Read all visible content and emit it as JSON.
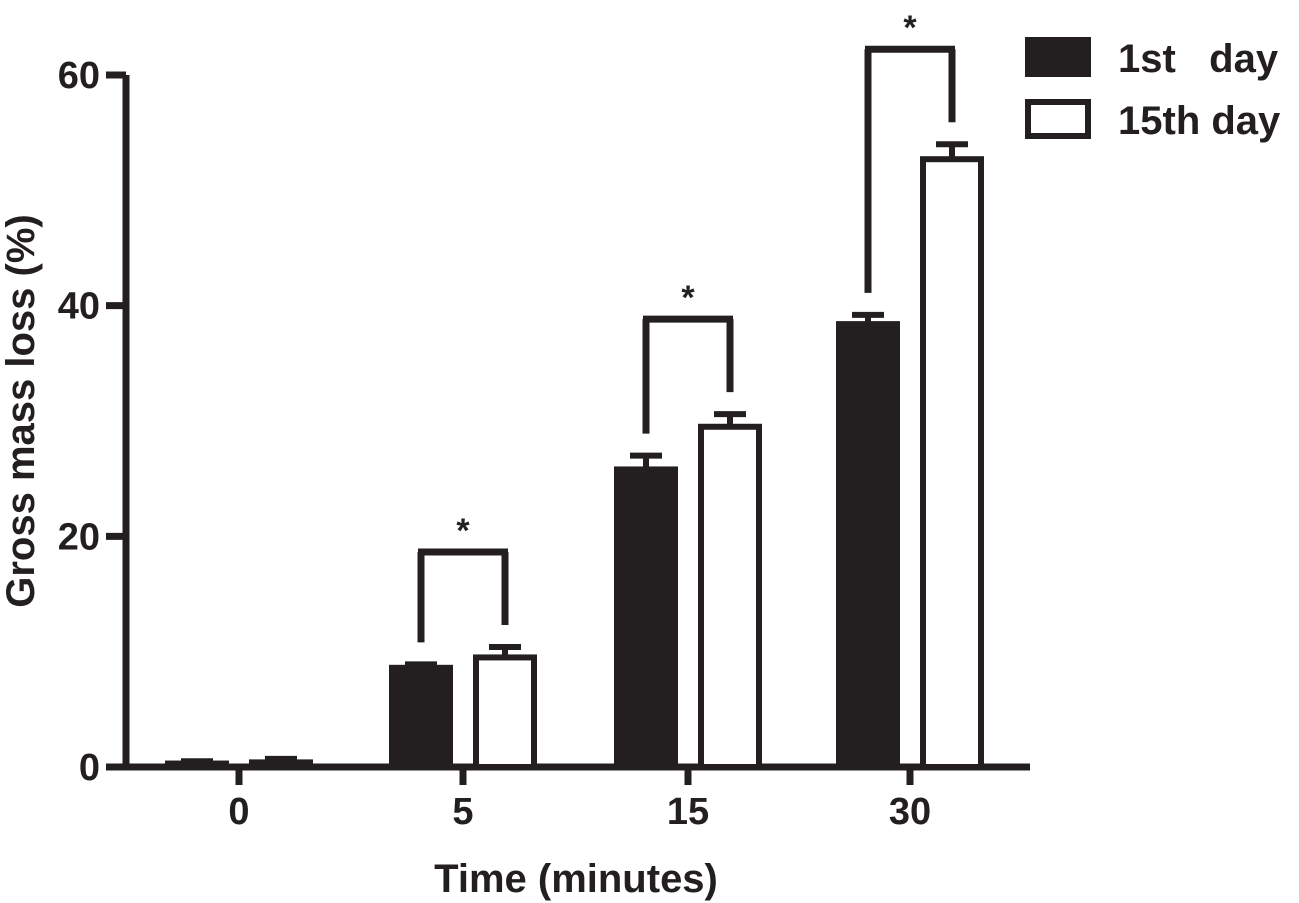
{
  "chart_data": {
    "type": "bar",
    "title": "",
    "xlabel": "Time (minutes)",
    "ylabel": "Gross mass loss (%)",
    "ylim": [
      0,
      60
    ],
    "yticks": [
      "0",
      "20",
      "40",
      "60"
    ],
    "categories": [
      "0",
      "5",
      "15",
      "30"
    ],
    "series": [
      {
        "name": "1st day",
        "values": [
          0.3,
          8.6,
          25.8,
          38.4
        ],
        "errors": [
          0.2,
          0.3,
          1.2,
          0.8
        ]
      },
      {
        "name": "15th day",
        "values": [
          0.4,
          9.5,
          29.5,
          52.7
        ],
        "errors": [
          0.3,
          0.9,
          1.1,
          1.3
        ]
      }
    ],
    "significance": [
      {
        "category": "5",
        "label": "*"
      },
      {
        "category": "15",
        "label": "*"
      },
      {
        "category": "30",
        "label": "*"
      }
    ],
    "legend": {
      "position": "top-right",
      "entries": [
        "1st   day",
        "15th day"
      ]
    },
    "grid": false,
    "colors": {
      "series_1_fill": "#231f20",
      "series_2_fill": "#ffffff",
      "ink": "#231f20"
    }
  }
}
